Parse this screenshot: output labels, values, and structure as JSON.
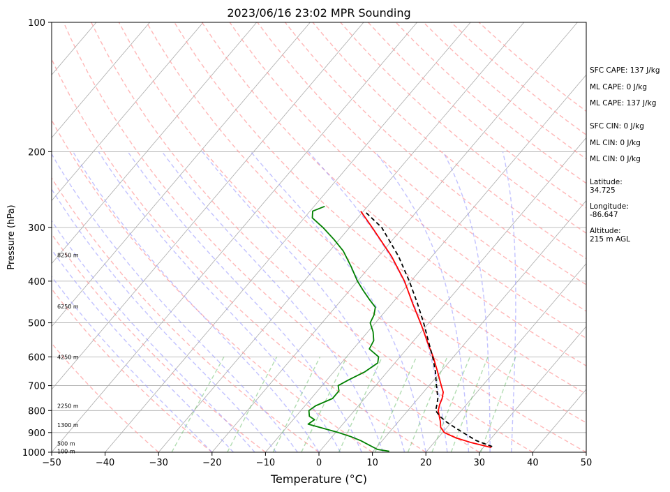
{
  "chart_data": {
    "type": "line",
    "title": "2023/06/16 23:02 MPR Sounding",
    "xlabel": "Temperature (°C)",
    "ylabel": "Pressure (hPa)",
    "xlim": [
      -50,
      50
    ],
    "ylim": [
      1000,
      100
    ],
    "yscale": "log",
    "skew": "skew-T log-P",
    "grid": true,
    "x_ticks": [
      "−50",
      "−40",
      "−30",
      "−20",
      "−10",
      "0",
      "10",
      "20",
      "30",
      "40",
      "50"
    ],
    "y_ticks": [
      "100",
      "200",
      "300",
      "400",
      "500",
      "600",
      "700",
      "800",
      "900",
      "1000"
    ],
    "height_labels": [
      {
        "p": 995,
        "text": "100 m"
      },
      {
        "p": 955,
        "text": "500 m"
      },
      {
        "p": 865,
        "text": "1300 m"
      },
      {
        "p": 780,
        "text": "2250 m"
      },
      {
        "p": 600,
        "text": "4250 m"
      },
      {
        "p": 458,
        "text": "6250 m"
      },
      {
        "p": 348,
        "text": "8250 m"
      }
    ],
    "annotations": [
      "SFC CAPE: 137 J/kg",
      "ML CAPE: 0 J/kg",
      "ML CAPE: 137 J/kg",
      "SFC CIN: 0 J/kg",
      "ML CIN: 0 J/kg",
      "ML CIN: 0 J/kg",
      "Latitude:",
      "34.725",
      "Longitude:",
      "-86.647",
      "Altitude:",
      "215 m AGL"
    ],
    "series": [
      {
        "name": "",
        "color": "#ff0000",
        "points": [
          [
            975,
            31.5
          ],
          [
            950,
            27.0
          ],
          [
            925,
            23.2
          ],
          [
            900,
            20.3
          ],
          [
            875,
            18.8
          ],
          [
            850,
            17.9
          ],
          [
            825,
            16.8
          ],
          [
            800,
            15.7
          ],
          [
            775,
            15.0
          ],
          [
            750,
            14.5
          ],
          [
            725,
            13.7
          ],
          [
            700,
            12.3
          ],
          [
            650,
            9.4
          ],
          [
            600,
            6.2
          ],
          [
            560,
            3.2
          ],
          [
            520,
            0.1
          ],
          [
            500,
            -1.6
          ],
          [
            450,
            -6.2
          ],
          [
            400,
            -11.2
          ],
          [
            350,
            -17.6
          ],
          [
            300,
            -25.8
          ],
          [
            275,
            -30.5
          ]
        ]
      },
      {
        "name": "",
        "color": "#008000",
        "points": [
          [
            995,
            13.0
          ],
          [
            985,
            10.5
          ],
          [
            960,
            8.0
          ],
          [
            940,
            6.0
          ],
          [
            920,
            3.5
          ],
          [
            900,
            0.5
          ],
          [
            880,
            -3.0
          ],
          [
            860,
            -6.5
          ],
          [
            840,
            -6.0
          ],
          [
            825,
            -7.5
          ],
          [
            800,
            -8.5
          ],
          [
            780,
            -8.0
          ],
          [
            750,
            -6.0
          ],
          [
            720,
            -6.0
          ],
          [
            700,
            -7.0
          ],
          [
            680,
            -6.0
          ],
          [
            650,
            -4.2
          ],
          [
            620,
            -3.2
          ],
          [
            600,
            -4.0
          ],
          [
            575,
            -7.0
          ],
          [
            550,
            -7.5
          ],
          [
            525,
            -9.0
          ],
          [
            500,
            -11.0
          ],
          [
            480,
            -11.5
          ],
          [
            460,
            -12.5
          ],
          [
            440,
            -15.0
          ],
          [
            420,
            -17.5
          ],
          [
            400,
            -20.0
          ],
          [
            370,
            -23.5
          ],
          [
            340,
            -27.5
          ],
          [
            320,
            -31.0
          ],
          [
            300,
            -35.0
          ],
          [
            285,
            -38.5
          ],
          [
            275,
            -39.5
          ],
          [
            268,
            -38.0
          ]
        ]
      },
      {
        "name": "",
        "color": "#000000",
        "dashed": true,
        "points": [
          [
            970,
            31.5
          ],
          [
            940,
            27.6
          ],
          [
            900,
            23.8
          ],
          [
            875,
            21.4
          ],
          [
            850,
            19.0
          ],
          [
            825,
            16.9
          ],
          [
            800,
            15.2
          ],
          [
            775,
            14.5
          ],
          [
            750,
            13.7
          ],
          [
            700,
            11.4
          ],
          [
            650,
            9.0
          ],
          [
            600,
            6.1
          ],
          [
            550,
            2.7
          ],
          [
            500,
            -1.0
          ],
          [
            450,
            -5.3
          ],
          [
            400,
            -10.3
          ],
          [
            350,
            -16.3
          ],
          [
            300,
            -24.0
          ],
          [
            275,
            -29.8
          ]
        ]
      }
    ]
  }
}
